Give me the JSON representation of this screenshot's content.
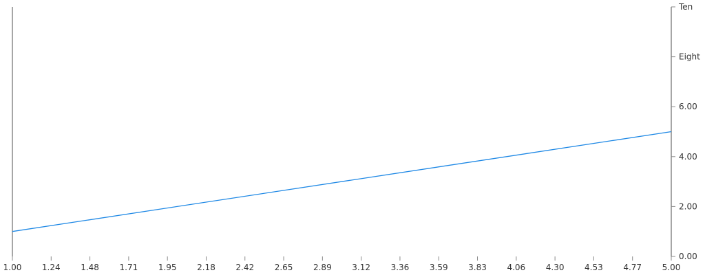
{
  "chart_data": {
    "type": "line",
    "title": "",
    "xlabel": "",
    "ylabel": "",
    "xlim": [
      1,
      5
    ],
    "ylim": [
      0,
      10
    ],
    "x_tick_labels": [
      "1.00",
      "1.24",
      "1.48",
      "1.71",
      "1.95",
      "2.18",
      "2.42",
      "2.65",
      "2.89",
      "3.12",
      "3.36",
      "3.59",
      "3.83",
      "4.06",
      "4.30",
      "4.53",
      "4.77",
      "5.00"
    ],
    "y_ticks": [
      {
        "value": 0,
        "label": "0.00"
      },
      {
        "value": 2,
        "label": "2.00"
      },
      {
        "value": 4,
        "label": "4.00"
      },
      {
        "value": 6,
        "label": "6.00"
      },
      {
        "value": 8,
        "label": "Eight"
      },
      {
        "value": 10,
        "label": "Ten"
      }
    ],
    "y_axis_position": "right",
    "grid": false,
    "series": [
      {
        "x": [
          1,
          5
        ],
        "y": [
          1,
          5
        ],
        "color": "#1e88e5"
      }
    ],
    "axis_color": "#888888"
  }
}
